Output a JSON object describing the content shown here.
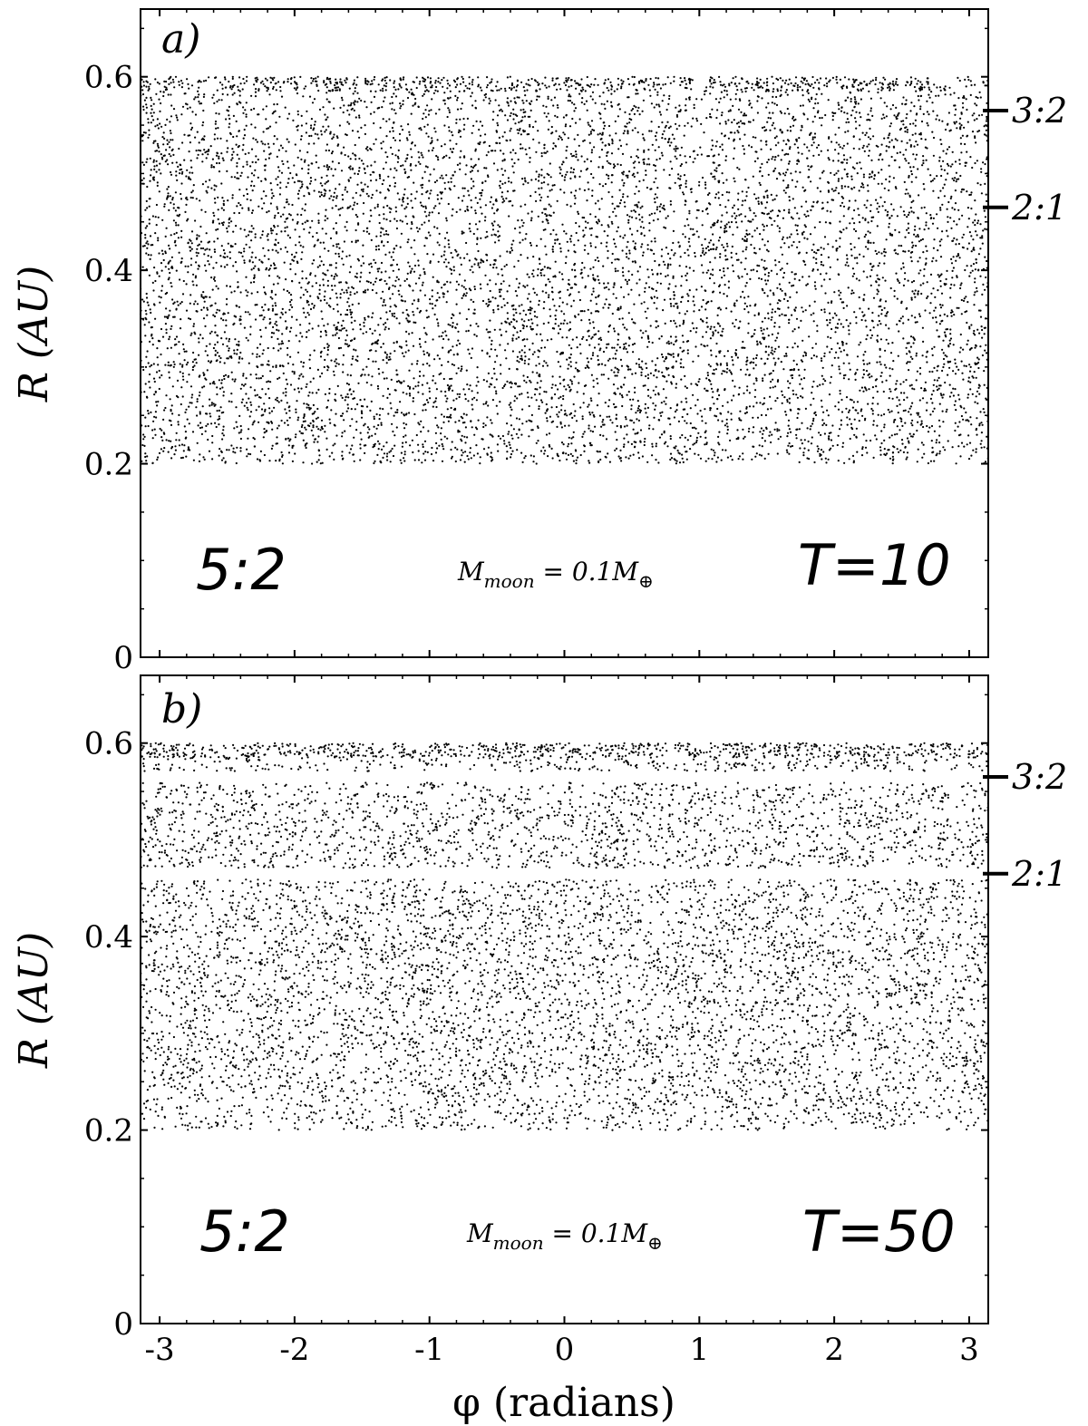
{
  "chart_data": [
    {
      "type": "scatter",
      "panel_label": "a)",
      "xlabel": "φ (radians)",
      "ylabel": "R (AU)",
      "xlim": [
        -3.14159,
        3.14159
      ],
      "ylim": [
        0,
        0.67
      ],
      "xticks": [
        "-3",
        "-2",
        "-1",
        "0",
        "1",
        "2",
        "3"
      ],
      "yticks": [
        "0",
        "0.2",
        "0.4",
        "0.6"
      ],
      "grid": false,
      "series_description": "uniformly scattered particles between R=0.2 and R=0.6 AU across all φ",
      "r_range": [
        0.2,
        0.6
      ],
      "resonances": [
        {
          "label": "3:2",
          "r": 0.565
        },
        {
          "label": "2:1",
          "r": 0.465
        }
      ],
      "annotations": {
        "resonance": "5:2",
        "mass_symbol": "M",
        "mass_sub": "moon",
        "mass_value": " =  0.1M",
        "earth_symbol": "⊕",
        "time": "T=10"
      }
    },
    {
      "type": "scatter",
      "panel_label": "b)",
      "xlabel": "φ (radians)",
      "ylabel": "R (AU)",
      "xlim": [
        -3.14159,
        3.14159
      ],
      "ylim": [
        0,
        0.67
      ],
      "xticks": [
        "-3",
        "-2",
        "-1",
        "0",
        "1",
        "2",
        "3"
      ],
      "yticks": [
        "0",
        "0.2",
        "0.4",
        "0.6"
      ],
      "grid": false,
      "r_range": [
        0.2,
        0.6
      ],
      "gaps": [
        0.465,
        0.565
      ],
      "resonances": [
        {
          "label": "3:2",
          "r": 0.565
        },
        {
          "label": "2:1",
          "r": 0.465
        }
      ],
      "annotations": {
        "resonance": "5:2",
        "mass_symbol": "M",
        "mass_sub": "moon",
        "mass_value": " =  0.1M",
        "earth_symbol": "⊕",
        "time": "T=50"
      }
    }
  ],
  "colors": {
    "points": "#000000",
    "frame": "#000000",
    "background": "#ffffff"
  }
}
